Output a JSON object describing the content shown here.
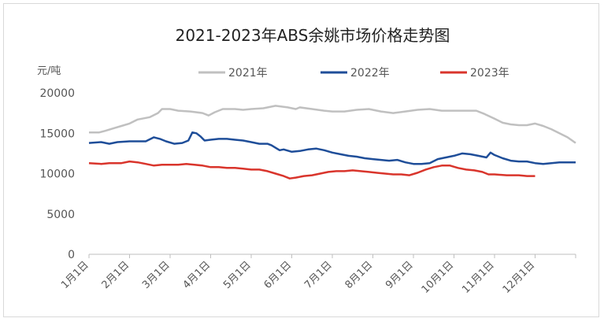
{
  "chart_data": {
    "type": "line",
    "title": "2021-2023年ABS余姚市场价格走势图",
    "ylabel": "元/吨",
    "ylim": [
      0,
      20000
    ],
    "yticks": [
      "0",
      "5000",
      "10000",
      "15000",
      "20000"
    ],
    "categories": [
      "1月1日",
      "2月1日",
      "3月1日",
      "4月1日",
      "5月1日",
      "6月1日",
      "7月1日",
      "8月1日",
      "9月1日",
      "10月1日",
      "11月1日",
      "12月1日"
    ],
    "grid": false,
    "legend_position": "top",
    "series": [
      {
        "name": "2021年",
        "color": "#c0c0c0",
        "points": [
          [
            0,
            15100
          ],
          [
            0.25,
            15100
          ],
          [
            0.4,
            15300
          ],
          [
            0.6,
            15600
          ],
          [
            0.8,
            15900
          ],
          [
            1.0,
            16200
          ],
          [
            1.2,
            16700
          ],
          [
            1.5,
            17000
          ],
          [
            1.7,
            17500
          ],
          [
            1.8,
            18000
          ],
          [
            2.0,
            18000
          ],
          [
            2.2,
            17800
          ],
          [
            2.5,
            17700
          ],
          [
            2.8,
            17500
          ],
          [
            2.95,
            17200
          ],
          [
            3.1,
            17600
          ],
          [
            3.3,
            18000
          ],
          [
            3.6,
            18000
          ],
          [
            3.8,
            17900
          ],
          [
            4.0,
            18000
          ],
          [
            4.3,
            18100
          ],
          [
            4.6,
            18400
          ],
          [
            4.9,
            18200
          ],
          [
            5.1,
            18000
          ],
          [
            5.2,
            18200
          ],
          [
            5.5,
            18000
          ],
          [
            5.8,
            17800
          ],
          [
            6.0,
            17700
          ],
          [
            6.3,
            17700
          ],
          [
            6.6,
            17900
          ],
          [
            6.9,
            18000
          ],
          [
            7.2,
            17700
          ],
          [
            7.5,
            17500
          ],
          [
            7.8,
            17700
          ],
          [
            8.1,
            17900
          ],
          [
            8.4,
            18000
          ],
          [
            8.7,
            17800
          ],
          [
            9.0,
            17800
          ],
          [
            9.3,
            17800
          ],
          [
            9.55,
            17800
          ],
          [
            9.75,
            17400
          ],
          [
            10.0,
            16800
          ],
          [
            10.2,
            16300
          ],
          [
            10.4,
            16100
          ],
          [
            10.6,
            16000
          ],
          [
            10.8,
            16000
          ],
          [
            11.0,
            16200
          ],
          [
            11.2,
            15900
          ],
          [
            11.4,
            15500
          ],
          [
            11.6,
            15000
          ],
          [
            11.8,
            14500
          ],
          [
            12.0,
            13800
          ]
        ]
      },
      {
        "name": "2022年",
        "color": "#1f4e99",
        "points": [
          [
            0,
            13800
          ],
          [
            0.3,
            13900
          ],
          [
            0.5,
            13700
          ],
          [
            0.7,
            13900
          ],
          [
            1.0,
            14000
          ],
          [
            1.2,
            14000
          ],
          [
            1.4,
            14000
          ],
          [
            1.6,
            14500
          ],
          [
            1.75,
            14300
          ],
          [
            1.9,
            14000
          ],
          [
            2.1,
            13700
          ],
          [
            2.3,
            13800
          ],
          [
            2.45,
            14100
          ],
          [
            2.55,
            15100
          ],
          [
            2.65,
            15000
          ],
          [
            2.75,
            14600
          ],
          [
            2.85,
            14100
          ],
          [
            3.0,
            14200
          ],
          [
            3.2,
            14300
          ],
          [
            3.4,
            14300
          ],
          [
            3.6,
            14200
          ],
          [
            3.8,
            14100
          ],
          [
            4.0,
            13900
          ],
          [
            4.2,
            13700
          ],
          [
            4.4,
            13700
          ],
          [
            4.5,
            13500
          ],
          [
            4.6,
            13200
          ],
          [
            4.7,
            12900
          ],
          [
            4.8,
            13000
          ],
          [
            5.0,
            12700
          ],
          [
            5.2,
            12800
          ],
          [
            5.4,
            13000
          ],
          [
            5.6,
            13100
          ],
          [
            5.8,
            12900
          ],
          [
            6.0,
            12600
          ],
          [
            6.2,
            12400
          ],
          [
            6.4,
            12200
          ],
          [
            6.6,
            12100
          ],
          [
            6.8,
            11900
          ],
          [
            7.0,
            11800
          ],
          [
            7.2,
            11700
          ],
          [
            7.4,
            11600
          ],
          [
            7.6,
            11700
          ],
          [
            7.8,
            11400
          ],
          [
            8.0,
            11200
          ],
          [
            8.2,
            11200
          ],
          [
            8.4,
            11300
          ],
          [
            8.6,
            11800
          ],
          [
            8.8,
            12000
          ],
          [
            9.0,
            12200
          ],
          [
            9.2,
            12500
          ],
          [
            9.4,
            12400
          ],
          [
            9.6,
            12200
          ],
          [
            9.8,
            12000
          ],
          [
            9.9,
            12600
          ],
          [
            10.0,
            12300
          ],
          [
            10.2,
            11900
          ],
          [
            10.4,
            11600
          ],
          [
            10.6,
            11500
          ],
          [
            10.8,
            11500
          ],
          [
            11.0,
            11300
          ],
          [
            11.2,
            11200
          ],
          [
            11.4,
            11300
          ],
          [
            11.6,
            11400
          ],
          [
            12.0,
            11400
          ]
        ]
      },
      {
        "name": "2023年",
        "color": "#d9352c",
        "points": [
          [
            0,
            11300
          ],
          [
            0.3,
            11200
          ],
          [
            0.5,
            11300
          ],
          [
            0.8,
            11300
          ],
          [
            1.0,
            11500
          ],
          [
            1.2,
            11400
          ],
          [
            1.4,
            11200
          ],
          [
            1.6,
            11000
          ],
          [
            1.8,
            11100
          ],
          [
            2.0,
            11100
          ],
          [
            2.2,
            11100
          ],
          [
            2.4,
            11200
          ],
          [
            2.6,
            11100
          ],
          [
            2.8,
            11000
          ],
          [
            3.0,
            10800
          ],
          [
            3.2,
            10800
          ],
          [
            3.4,
            10700
          ],
          [
            3.6,
            10700
          ],
          [
            3.8,
            10600
          ],
          [
            4.0,
            10500
          ],
          [
            4.2,
            10500
          ],
          [
            4.4,
            10300
          ],
          [
            4.6,
            10000
          ],
          [
            4.8,
            9700
          ],
          [
            4.95,
            9400
          ],
          [
            5.1,
            9500
          ],
          [
            5.3,
            9700
          ],
          [
            5.5,
            9800
          ],
          [
            5.7,
            10000
          ],
          [
            5.9,
            10200
          ],
          [
            6.1,
            10300
          ],
          [
            6.3,
            10300
          ],
          [
            6.5,
            10400
          ],
          [
            6.7,
            10300
          ],
          [
            6.9,
            10200
          ],
          [
            7.1,
            10100
          ],
          [
            7.3,
            10000
          ],
          [
            7.5,
            9900
          ],
          [
            7.7,
            9900
          ],
          [
            7.9,
            9800
          ],
          [
            8.1,
            10100
          ],
          [
            8.3,
            10500
          ],
          [
            8.5,
            10800
          ],
          [
            8.7,
            11000
          ],
          [
            8.9,
            11000
          ],
          [
            9.1,
            10700
          ],
          [
            9.3,
            10500
          ],
          [
            9.5,
            10400
          ],
          [
            9.7,
            10200
          ],
          [
            9.85,
            9900
          ],
          [
            10.0,
            9900
          ],
          [
            10.3,
            9800
          ],
          [
            10.6,
            9800
          ],
          [
            10.8,
            9700
          ],
          [
            11.0,
            9700
          ]
        ]
      }
    ]
  }
}
